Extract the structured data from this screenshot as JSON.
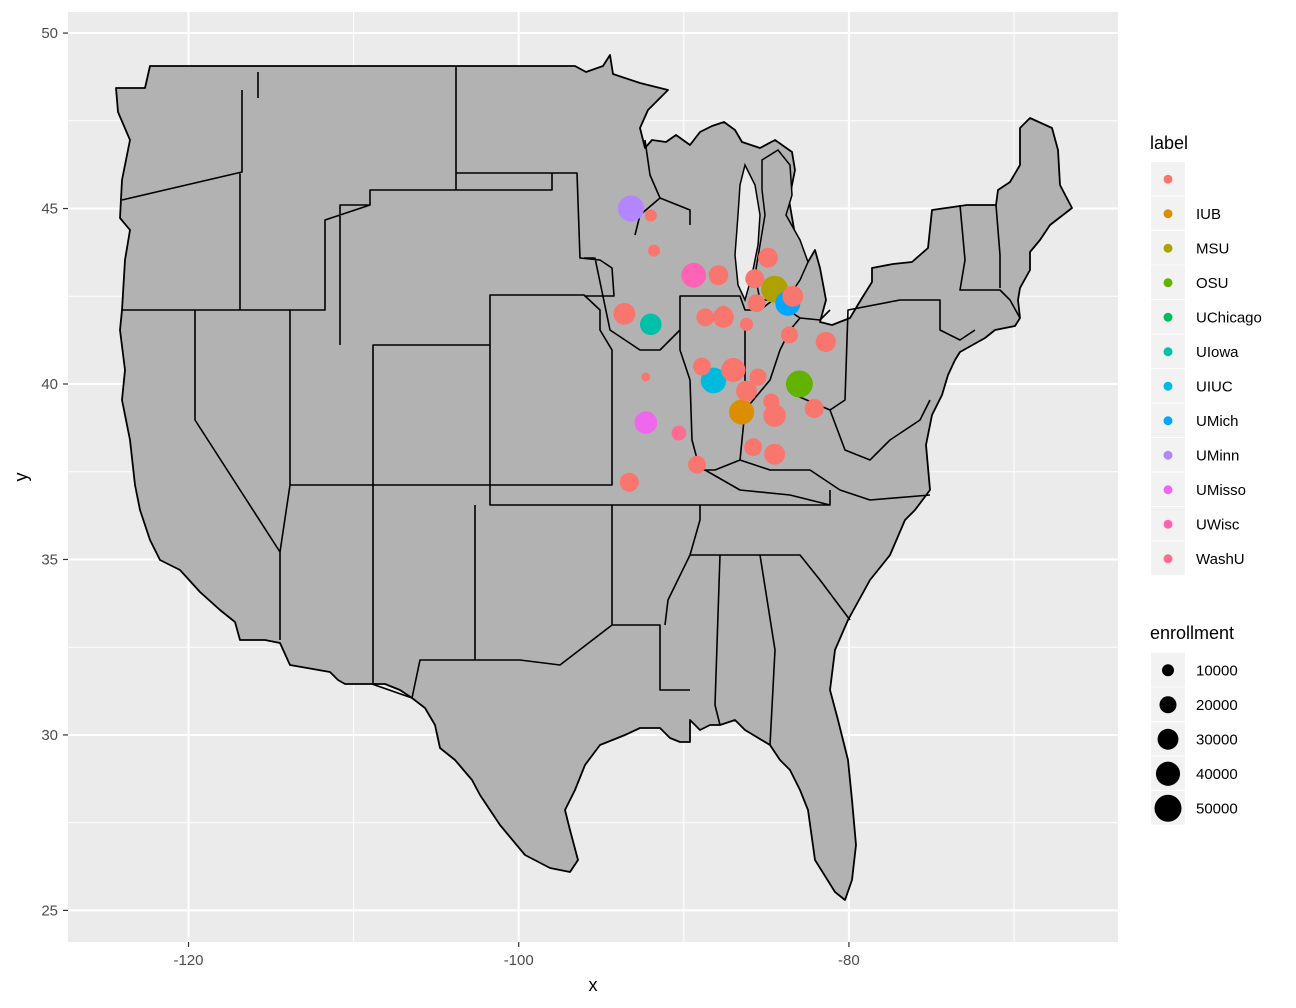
{
  "chart_data": {
    "type": "scatter",
    "xlabel": "x",
    "ylabel": "y",
    "xlim": [
      -127.3,
      -63.7
    ],
    "ylim": [
      24.1,
      50.6
    ],
    "x_ticks": [
      -120,
      -100,
      -80
    ],
    "y_ticks": [
      25,
      30,
      35,
      40,
      45,
      50
    ],
    "grid": true,
    "background_map": "contiguous United States state boundaries (gray fill, black outline)",
    "legend_position": "right",
    "legends": {
      "color": {
        "title": "label",
        "entries": [
          {
            "label": "",
            "color": "#F8766D"
          },
          {
            "label": "IUB",
            "color": "#DB8E00"
          },
          {
            "label": "MSU",
            "color": "#AEA200"
          },
          {
            "label": "OSU",
            "color": "#64B200"
          },
          {
            "label": "UChicago",
            "color": "#00BD5C"
          },
          {
            "label": "UIowa",
            "color": "#00C1A7"
          },
          {
            "label": "UIUC",
            "color": "#00BADE"
          },
          {
            "label": "UMich",
            "color": "#00A6FF"
          },
          {
            "label": "UMinn",
            "color": "#B385FF"
          },
          {
            "label": "UMisso",
            "color": "#EF67EB"
          },
          {
            "label": "UWisc",
            "color": "#FF63B6"
          },
          {
            "label": "WashU",
            "color": "#FF6C91"
          }
        ]
      },
      "size": {
        "title": "enrollment",
        "entries": [
          {
            "label": "10000",
            "value": 10000
          },
          {
            "label": "20000",
            "value": 20000
          },
          {
            "label": "30000",
            "value": 30000
          },
          {
            "label": "40000",
            "value": 40000
          },
          {
            "label": "50000",
            "value": 50000
          }
        ]
      }
    },
    "points": [
      {
        "x": -93.2,
        "y": 45.0,
        "label": "UMinn",
        "enrollment": 47000
      },
      {
        "x": -92.0,
        "y": 44.8,
        "label": "",
        "enrollment": 10000
      },
      {
        "x": -91.8,
        "y": 43.8,
        "label": "",
        "enrollment": 10000
      },
      {
        "x": -89.4,
        "y": 43.1,
        "label": "UWisc",
        "enrollment": 42000
      },
      {
        "x": -87.9,
        "y": 43.1,
        "label": "",
        "enrollment": 27000
      },
      {
        "x": -84.9,
        "y": 43.6,
        "label": "",
        "enrollment": 27000
      },
      {
        "x": -85.7,
        "y": 43.0,
        "label": "",
        "enrollment": 25000
      },
      {
        "x": -84.5,
        "y": 42.7,
        "label": "MSU",
        "enrollment": 50000
      },
      {
        "x": -83.7,
        "y": 42.3,
        "label": "UMich",
        "enrollment": 43000
      },
      {
        "x": -83.4,
        "y": 42.5,
        "label": "",
        "enrollment": 30000
      },
      {
        "x": -85.6,
        "y": 42.3,
        "label": "",
        "enrollment": 22000
      },
      {
        "x": -93.6,
        "y": 42.0,
        "label": "",
        "enrollment": 33000
      },
      {
        "x": -92.0,
        "y": 41.7,
        "label": "UIowa",
        "enrollment": 32000
      },
      {
        "x": -88.7,
        "y": 41.9,
        "label": "",
        "enrollment": 22000
      },
      {
        "x": -87.6,
        "y": 42.0,
        "label": "",
        "enrollment": 18000
      },
      {
        "x": -87.6,
        "y": 41.9,
        "label": "",
        "enrollment": 30000
      },
      {
        "x": -86.2,
        "y": 41.7,
        "label": "",
        "enrollment": 12000
      },
      {
        "x": -83.6,
        "y": 41.4,
        "label": "",
        "enrollment": 20000
      },
      {
        "x": -81.4,
        "y": 41.2,
        "label": "",
        "enrollment": 28000
      },
      {
        "x": -88.9,
        "y": 40.5,
        "label": "",
        "enrollment": 22000
      },
      {
        "x": -87.0,
        "y": 40.4,
        "label": "",
        "enrollment": 40000
      },
      {
        "x": -88.2,
        "y": 40.1,
        "label": "UIUC",
        "enrollment": 45000
      },
      {
        "x": -85.5,
        "y": 40.2,
        "label": "",
        "enrollment": 20000
      },
      {
        "x": -83.0,
        "y": 40.0,
        "label": "OSU",
        "enrollment": 58000
      },
      {
        "x": -86.2,
        "y": 39.8,
        "label": "",
        "enrollment": 30000
      },
      {
        "x": -92.3,
        "y": 40.2,
        "label": "",
        "enrollment": 5000
      },
      {
        "x": -84.7,
        "y": 39.5,
        "label": "",
        "enrollment": 18000
      },
      {
        "x": -86.5,
        "y": 39.2,
        "label": "IUB",
        "enrollment": 43000
      },
      {
        "x": -84.5,
        "y": 39.1,
        "label": "",
        "enrollment": 35000
      },
      {
        "x": -82.1,
        "y": 39.3,
        "label": "",
        "enrollment": 25000
      },
      {
        "x": -92.3,
        "y": 38.9,
        "label": "UMisso",
        "enrollment": 35000
      },
      {
        "x": -90.3,
        "y": 38.6,
        "label": "WashU",
        "enrollment": 15000
      },
      {
        "x": -85.8,
        "y": 38.2,
        "label": "",
        "enrollment": 22000
      },
      {
        "x": -84.5,
        "y": 38.0,
        "label": "",
        "enrollment": 30000
      },
      {
        "x": -89.2,
        "y": 37.7,
        "label": "",
        "enrollment": 22000
      },
      {
        "x": -93.3,
        "y": 37.2,
        "label": "",
        "enrollment": 25000
      }
    ]
  }
}
